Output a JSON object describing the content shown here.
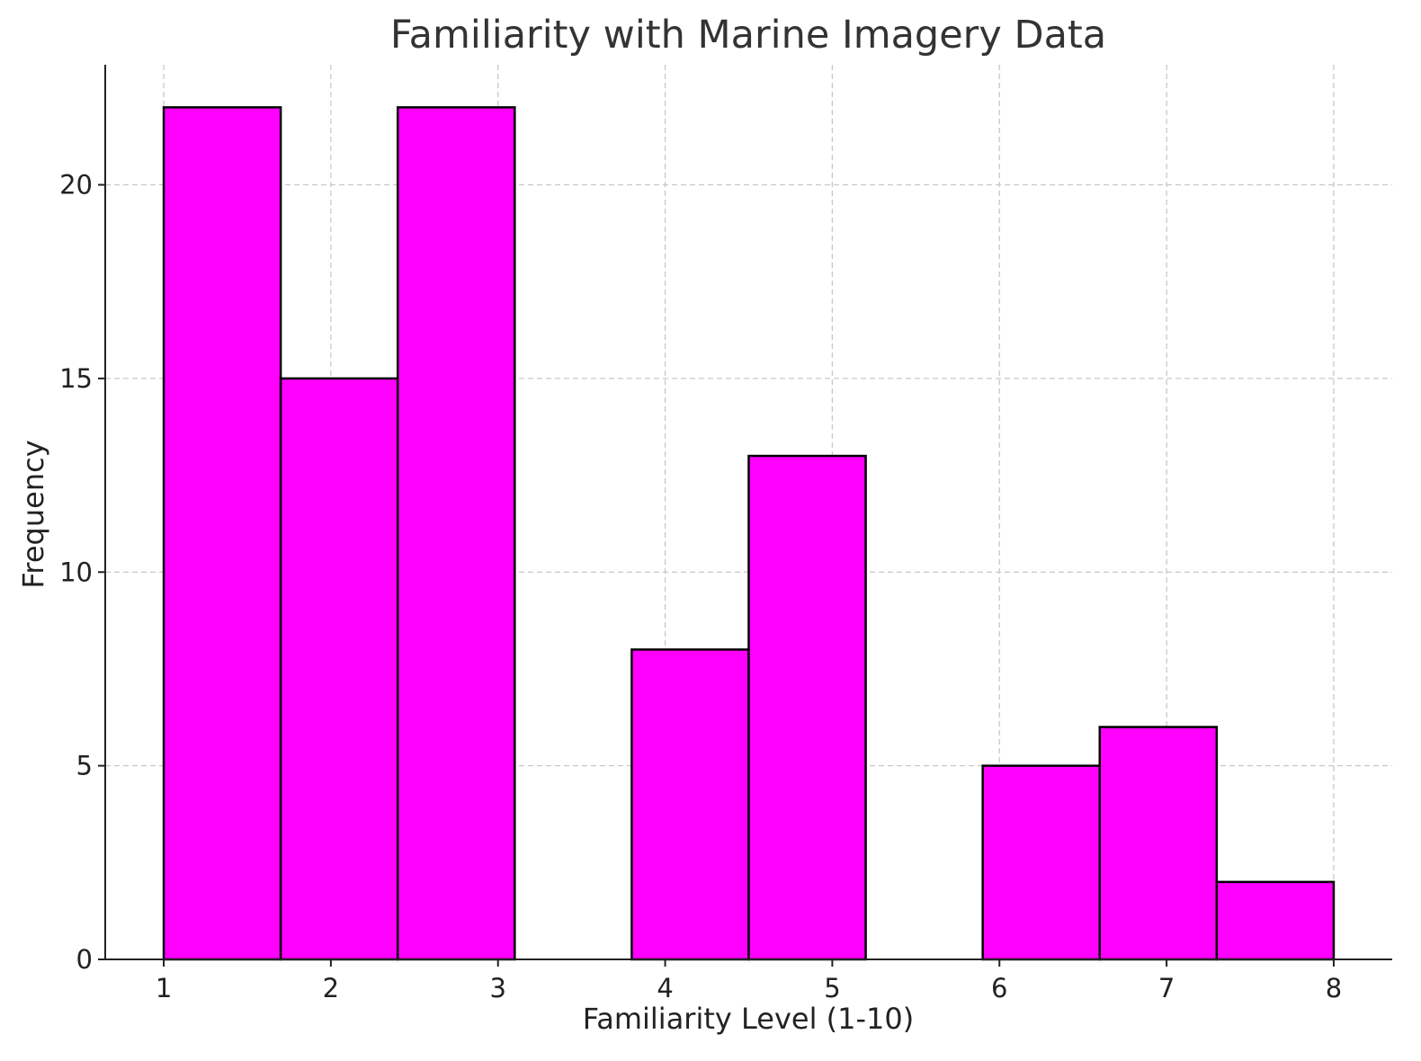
{
  "chart_data": {
    "type": "bar",
    "subtype": "histogram",
    "title": "Familiarity with Marine Imagery Data",
    "xlabel": "Familiarity Level (1-10)",
    "ylabel": "Frequency",
    "bins": [
      {
        "start": 1.0,
        "end": 1.7,
        "count": 22
      },
      {
        "start": 1.7,
        "end": 2.4,
        "count": 15
      },
      {
        "start": 2.4,
        "end": 3.1,
        "count": 22
      },
      {
        "start": 3.1,
        "end": 3.8,
        "count": 0
      },
      {
        "start": 3.8,
        "end": 4.5,
        "count": 8
      },
      {
        "start": 4.5,
        "end": 5.2,
        "count": 13
      },
      {
        "start": 5.2,
        "end": 5.9,
        "count": 0
      },
      {
        "start": 5.9,
        "end": 6.6,
        "count": 5
      },
      {
        "start": 6.6,
        "end": 7.3,
        "count": 6
      },
      {
        "start": 7.3,
        "end": 8.0,
        "count": 2
      }
    ],
    "xticks": [
      "1",
      "2",
      "3",
      "4",
      "5",
      "6",
      "7",
      "8"
    ],
    "yticks": [
      "0",
      "5",
      "10",
      "15",
      "20"
    ],
    "xlim": [
      0.65,
      8.35
    ],
    "ylim": [
      0,
      23.1
    ],
    "grid": true,
    "bar_color": "#ff00ff",
    "edge_color": "#000000"
  }
}
